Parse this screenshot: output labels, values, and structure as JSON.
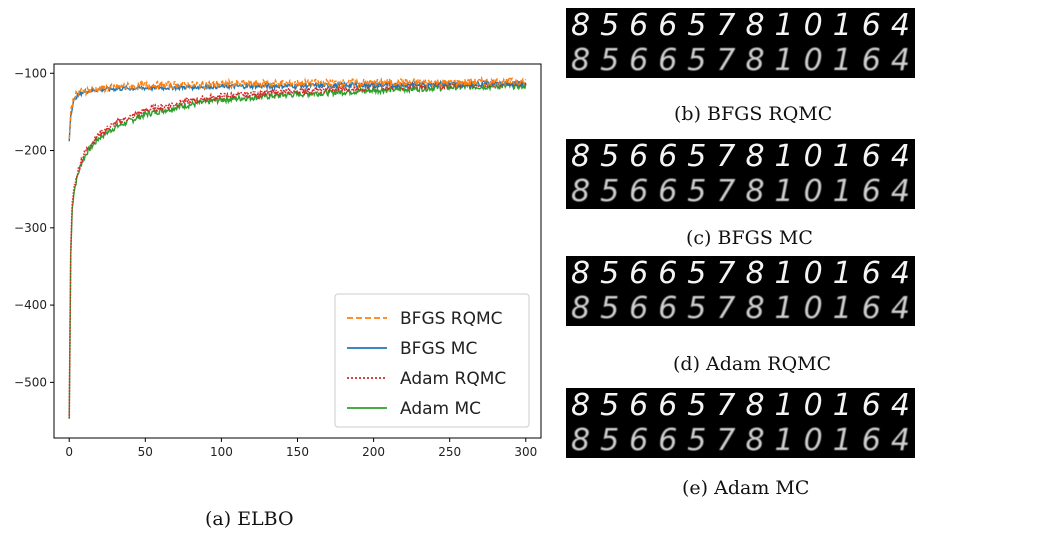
{
  "chart_data": {
    "type": "line",
    "title": "",
    "xlabel": "",
    "ylabel": "",
    "xlim": [
      -10,
      310
    ],
    "ylim": [
      -572,
      -88
    ],
    "xticks": [
      0,
      50,
      100,
      150,
      200,
      250,
      300
    ],
    "yticks": [
      -100,
      -200,
      -300,
      -400,
      -500
    ],
    "legend_position": "lower-right",
    "series": [
      {
        "name": "BFGS RQMC",
        "color": "#ff7f0e",
        "style": "dashed",
        "x": [
          0,
          1,
          2,
          3,
          5,
          8,
          12,
          20,
          30,
          50,
          75,
          100,
          150,
          200,
          250,
          300
        ],
        "y": [
          -185,
          -150,
          -140,
          -133,
          -127,
          -124,
          -122,
          -120,
          -118,
          -116,
          -115,
          -114,
          -113,
          -112,
          -112,
          -111
        ],
        "noise": 5
      },
      {
        "name": "BFGS MC",
        "color": "#1f77b4",
        "style": "solid",
        "x": [
          0,
          1,
          2,
          3,
          5,
          8,
          12,
          20,
          30,
          50,
          75,
          100,
          150,
          200,
          250,
          300
        ],
        "y": [
          -188,
          -155,
          -143,
          -136,
          -129,
          -125,
          -123,
          -121,
          -120,
          -119,
          -118,
          -117,
          -116,
          -115,
          -114,
          -113
        ],
        "noise": 3
      },
      {
        "name": "Adam RQMC",
        "color": "#d62728",
        "style": "dotted",
        "x": [
          0,
          1,
          2,
          3,
          5,
          8,
          12,
          20,
          30,
          50,
          75,
          100,
          150,
          200,
          250,
          300
        ],
        "y": [
          -547,
          -330,
          -270,
          -250,
          -232,
          -212,
          -197,
          -178,
          -165,
          -148,
          -137,
          -130,
          -123,
          -118,
          -115,
          -113
        ],
        "noise": 4
      },
      {
        "name": "Adam MC",
        "color": "#2ca02c",
        "style": "solid",
        "x": [
          0,
          1,
          2,
          3,
          5,
          8,
          12,
          20,
          30,
          50,
          75,
          100,
          150,
          200,
          250,
          300
        ],
        "y": [
          -547,
          -335,
          -275,
          -255,
          -236,
          -216,
          -201,
          -183,
          -170,
          -153,
          -142,
          -134,
          -127,
          -122,
          -118,
          -116
        ],
        "noise": 4
      }
    ]
  },
  "captions": {
    "a": "(a) ELBO",
    "b": "(b) BFGS RQMC",
    "c": "(c) BFGS MC",
    "d": "(d) Adam RQMC",
    "e": "(e) Adam MC"
  },
  "panels": {
    "digits": [
      "8",
      "5",
      "6",
      "6",
      "5",
      "7",
      "8",
      "1",
      "0",
      "1",
      "6",
      "4"
    ]
  }
}
